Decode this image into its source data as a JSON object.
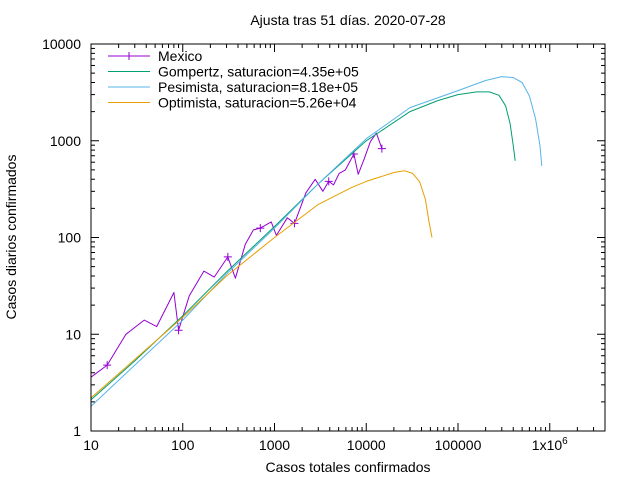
{
  "chart_data": {
    "type": "line",
    "title": "Ajusta tras 51 días. 2020-07-28",
    "xlabel": "Casos totales confirmados",
    "ylabel": "Casos diarios confirmados",
    "xscale": "log",
    "yscale": "log",
    "xlim": [
      10,
      4000000
    ],
    "ylim": [
      1,
      10000
    ],
    "grid": false,
    "legend_position": "top-left",
    "xticks": [
      {
        "value": 10,
        "label": "10"
      },
      {
        "value": 100,
        "label": "100"
      },
      {
        "value": 1000,
        "label": "1000"
      },
      {
        "value": 10000,
        "label": "10000"
      },
      {
        "value": 100000,
        "label": "100000"
      },
      {
        "value": 1000000,
        "label": "1x10",
        "sup": "6"
      }
    ],
    "yticks": [
      {
        "value": 1,
        "label": "1"
      },
      {
        "value": 10,
        "label": "10"
      },
      {
        "value": 100,
        "label": "100"
      },
      {
        "value": 1000,
        "label": "1000"
      },
      {
        "value": 10000,
        "label": "10000"
      }
    ],
    "series": [
      {
        "name": "Mexico",
        "color": "#9400d3",
        "style": "linespoints",
        "x": [
          10,
          15,
          24,
          38,
          52,
          80,
          90,
          118,
          170,
          220,
          310,
          375,
          480,
          590,
          700,
          920,
          1050,
          1380,
          1650,
          2200,
          2780,
          3370,
          3900,
          4400,
          5070,
          5920,
          7330,
          8170,
          9500,
          11100,
          12900,
          14800
        ],
        "y": [
          3.6,
          4.8,
          10,
          14,
          12,
          27,
          11,
          25,
          45,
          39,
          63,
          38,
          85,
          120,
          125,
          145,
          105,
          160,
          140,
          290,
          400,
          300,
          380,
          350,
          460,
          500,
          730,
          450,
          650,
          980,
          1200,
          830
        ],
        "point_indices": [
          1,
          6,
          10,
          14,
          18,
          22,
          26,
          31
        ]
      },
      {
        "name": "Gompertz, saturacion=4.35e+05",
        "color": "#009e73",
        "style": "line",
        "x": [
          10,
          30,
          100,
          300,
          1000,
          3000,
          10000,
          30000,
          60000,
          100000,
          160000,
          220000,
          280000,
          330000,
          370000,
          400000,
          420000
        ],
        "y": [
          2.1,
          5.3,
          15.5,
          44,
          130,
          360,
          1000,
          2000,
          2600,
          3000,
          3200,
          3200,
          2950,
          2300,
          1500,
          900,
          620
        ]
      },
      {
        "name": "Pesimista, saturacion=8.18e+05",
        "color": "#56b4e9",
        "style": "line",
        "x": [
          10,
          30,
          100,
          300,
          1000,
          3000,
          10000,
          30000,
          100000,
          200000,
          300000,
          400000,
          500000,
          600000,
          700000,
          780000,
          818000
        ],
        "y": [
          1.8,
          4.8,
          14,
          42,
          125,
          360,
          1050,
          2200,
          3300,
          4200,
          4600,
          4500,
          4000,
          2900,
          1700,
          900,
          550
        ]
      },
      {
        "name": "Optimista, saturacion=5.26e+04",
        "color": "#e69f00",
        "style": "line",
        "x": [
          10,
          30,
          100,
          300,
          1000,
          3000,
          7000,
          10000,
          15000,
          20000,
          26000,
          32000,
          38000,
          44000,
          48000,
          52000
        ],
        "y": [
          2.2,
          5.5,
          15,
          40,
          100,
          220,
          330,
          380,
          430,
          470,
          490,
          460,
          380,
          250,
          150,
          100
        ]
      }
    ]
  }
}
